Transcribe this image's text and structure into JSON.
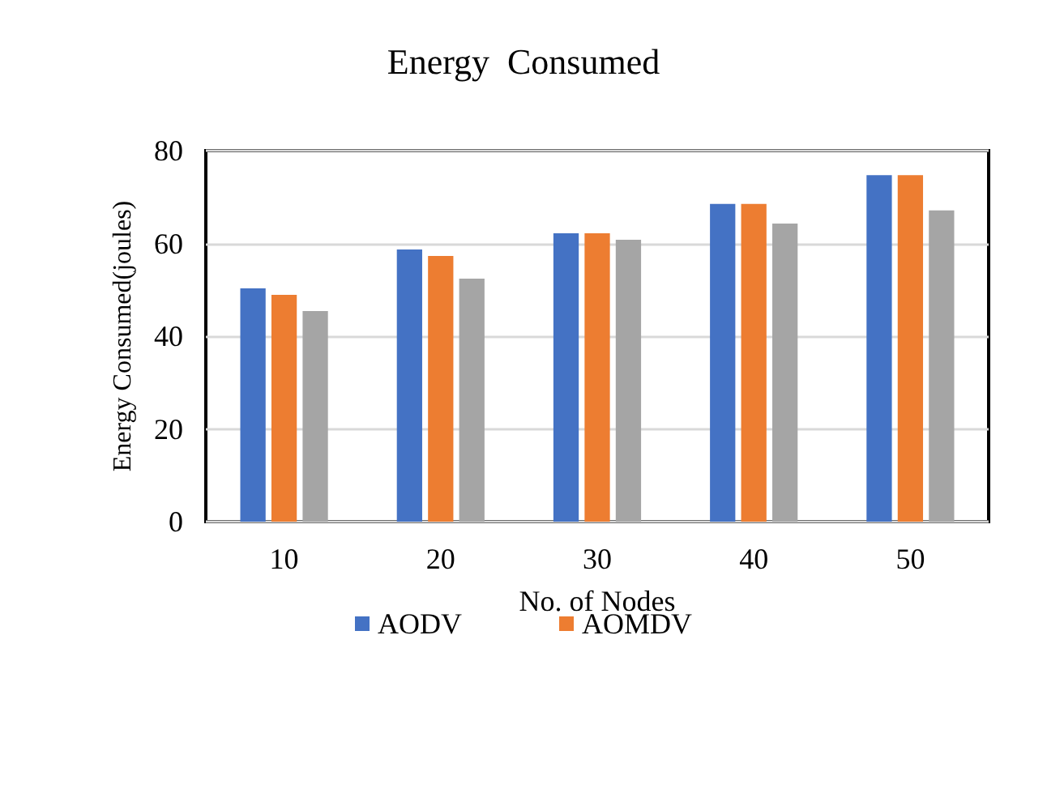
{
  "chart_data": {
    "type": "bar",
    "title": "Energy  Consumed",
    "xlabel": "No. of Nodes",
    "ylabel": "Energy Consumed(joules)",
    "categories": [
      "10",
      "20",
      "30",
      "40",
      "50"
    ],
    "series": [
      {
        "name": "AODV",
        "color": "#4472c4",
        "values": [
          50.3,
          58.7,
          62.2,
          68.5,
          74.7
        ]
      },
      {
        "name": "AOMDV",
        "color": "#ed7d31",
        "values": [
          48.9,
          57.3,
          62.2,
          68.5,
          74.7
        ]
      },
      {
        "color": "#a5a5a5",
        "values": [
          45.4,
          52.4,
          60.8,
          64.3,
          67.1
        ]
      }
    ],
    "ylim": [
      0,
      80
    ],
    "yticks": [
      0,
      20,
      40,
      60,
      80
    ],
    "grid": "y",
    "legend": "bottom"
  }
}
